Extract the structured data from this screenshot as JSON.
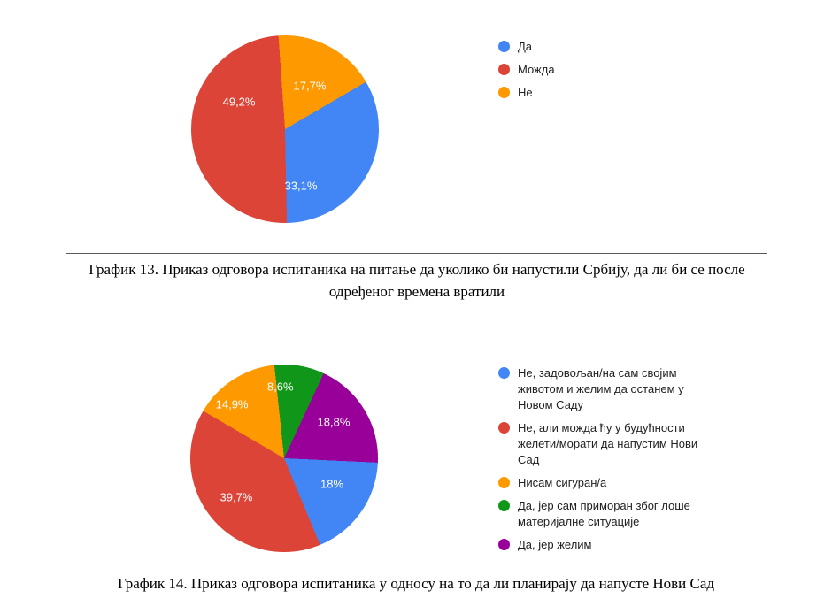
{
  "page": {
    "background": "#ffffff"
  },
  "chart_data": [
    {
      "type": "pie",
      "figure_label": "График 13",
      "legend_position": "right",
      "grid": false,
      "categories": [
        "Да",
        "Можда",
        "Не"
      ],
      "values": [
        33.1,
        49.2,
        17.7
      ],
      "slice_labels": [
        "33,1%",
        "49,2%",
        "17,7%"
      ],
      "legend": [
        {
          "label": "Да",
          "color": "#4285F4"
        },
        {
          "label": "Можда",
          "color": "#DB4437"
        },
        {
          "label": "Не",
          "color": "#FF9900"
        }
      ],
      "render_order_clockwise_from_top": [
        2,
        0,
        1
      ],
      "caption": "График 13. Приказ одговора испитаника на питање да уколико би напустили Србију, да ли би се после одређеног времена вратили"
    },
    {
      "type": "pie",
      "figure_label": "График 14",
      "legend_position": "right",
      "grid": false,
      "categories": [
        "Не, задовољан/на сам својим животом и желим да останем у Новом Саду",
        "Не, али можда ћу у будућности желети/морати да напустим Нови Сад",
        "Нисам сигуран/а",
        "Да, јер сам приморан због лоше материјалне ситуације",
        "Да, јер желим"
      ],
      "values": [
        18,
        39.7,
        14.9,
        8.6,
        18.8
      ],
      "slice_labels": [
        "18%",
        "39,7%",
        "14,9%",
        "8,6%",
        "18,8%"
      ],
      "legend": [
        {
          "label": "Не, задовољан/на сам својим животом и желим да останем у Новом Саду",
          "color": "#4285F4"
        },
        {
          "label": "Не, али можда ћу у будућности желети/морати да напустим Нови Сад",
          "color": "#DB4437"
        },
        {
          "label": "Нисам сигуран/а",
          "color": "#FF9900"
        },
        {
          "label": "Да, јер сам приморан због лоше материјалне ситуације",
          "color": "#109618"
        },
        {
          "label": "Да, јер желим",
          "color": "#990099"
        }
      ],
      "render_order_clockwise_from_top": [
        3,
        4,
        0,
        1,
        2
      ],
      "caption": "График 14. Приказ одговора испитаника у односу на то да ли планирају да напусте Нови Сад"
    }
  ]
}
